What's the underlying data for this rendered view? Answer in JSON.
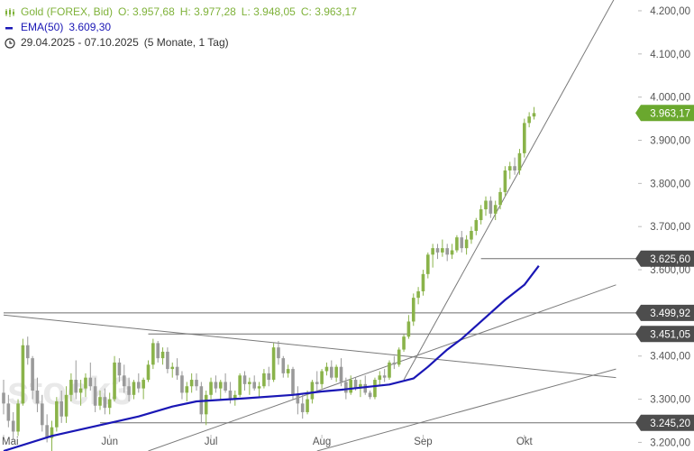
{
  "legend": {
    "instrument": "Gold (FOREX, Bid)",
    "open": "O: 3.957,68",
    "high": "H: 3.977,28",
    "low": "L: 3.948,05",
    "close": "C: 3.963,17",
    "ema_label": "EMA(50)",
    "ema_value": "3.609,30",
    "range": "29.04.2025 - 07.10.2025",
    "period": "(5 Monate, 1 Tag)"
  },
  "watermark": "stock3",
  "colors": {
    "up": "#8ab34a",
    "down": "#9a9a9a",
    "ema": "#1a17b5",
    "trendline": "#7a7a7a",
    "price_tag": "#6aa82e",
    "level_tag": "#4d4d4d"
  },
  "chart_data": {
    "type": "candlestick",
    "title": "",
    "xlabel": "",
    "ylabel": "",
    "ylim": [
      3180,
      4225
    ],
    "y_ticks": [
      {
        "v": 4200,
        "label": "4.200,00"
      },
      {
        "v": 4100,
        "label": "4.100,00"
      },
      {
        "v": 4000,
        "label": "4.000,00"
      },
      {
        "v": 3900,
        "label": "3.900,00"
      },
      {
        "v": 3800,
        "label": "3.800,00"
      },
      {
        "v": 3700,
        "label": "3.700,00"
      },
      {
        "v": 3600,
        "label": "3.600,00"
      },
      {
        "v": 3400,
        "label": "3.400,00"
      },
      {
        "v": 3300,
        "label": "3.300,00"
      },
      {
        "v": 3200,
        "label": "3.200,00"
      }
    ],
    "x_ticks": [
      {
        "i": 0,
        "label": "Mai"
      },
      {
        "i": 22,
        "label": "Jun"
      },
      {
        "i": 43,
        "label": "Jul"
      },
      {
        "i": 66,
        "label": "Aug"
      },
      {
        "i": 87,
        "label": "Sep"
      },
      {
        "i": 108,
        "label": "Okt"
      }
    ],
    "candles_ohlc": [
      [
        3315,
        3345,
        3265,
        3290
      ],
      [
        3290,
        3310,
        3235,
        3250
      ],
      [
        3250,
        3270,
        3205,
        3225
      ],
      [
        3225,
        3300,
        3215,
        3290
      ],
      [
        3290,
        3440,
        3285,
        3425
      ],
      [
        3425,
        3445,
        3380,
        3395
      ],
      [
        3395,
        3400,
        3300,
        3320
      ],
      [
        3320,
        3350,
        3270,
        3290
      ],
      [
        3290,
        3310,
        3225,
        3240
      ],
      [
        3240,
        3265,
        3200,
        3210
      ],
      [
        3210,
        3250,
        3180,
        3235
      ],
      [
        3235,
        3305,
        3225,
        3295
      ],
      [
        3295,
        3320,
        3245,
        3260
      ],
      [
        3260,
        3330,
        3245,
        3310
      ],
      [
        3310,
        3360,
        3295,
        3345
      ],
      [
        3345,
        3390,
        3300,
        3315
      ],
      [
        3315,
        3345,
        3285,
        3325
      ],
      [
        3325,
        3360,
        3305,
        3350
      ],
      [
        3350,
        3385,
        3320,
        3330
      ],
      [
        3330,
        3350,
        3270,
        3285
      ],
      [
        3285,
        3320,
        3275,
        3305
      ],
      [
        3305,
        3325,
        3265,
        3280
      ],
      [
        3280,
        3315,
        3265,
        3300
      ],
      [
        3300,
        3400,
        3295,
        3385
      ],
      [
        3385,
        3395,
        3340,
        3355
      ],
      [
        3355,
        3380,
        3315,
        3330
      ],
      [
        3330,
        3350,
        3295,
        3310
      ],
      [
        3310,
        3345,
        3300,
        3340
      ],
      [
        3340,
        3360,
        3315,
        3325
      ],
      [
        3325,
        3350,
        3300,
        3345
      ],
      [
        3345,
        3390,
        3340,
        3380
      ],
      [
        3380,
        3440,
        3370,
        3430
      ],
      [
        3430,
        3435,
        3385,
        3395
      ],
      [
        3395,
        3420,
        3380,
        3410
      ],
      [
        3410,
        3420,
        3360,
        3370
      ],
      [
        3370,
        3385,
        3350,
        3375
      ],
      [
        3375,
        3395,
        3345,
        3355
      ],
      [
        3355,
        3365,
        3300,
        3315
      ],
      [
        3315,
        3340,
        3295,
        3330
      ],
      [
        3330,
        3360,
        3315,
        3345
      ],
      [
        3345,
        3360,
        3320,
        3330
      ],
      [
        3330,
        3340,
        3245,
        3265
      ],
      [
        3265,
        3320,
        3240,
        3310
      ],
      [
        3310,
        3350,
        3300,
        3340
      ],
      [
        3340,
        3355,
        3315,
        3325
      ],
      [
        3325,
        3345,
        3300,
        3340
      ],
      [
        3340,
        3360,
        3315,
        3320
      ],
      [
        3320,
        3340,
        3290,
        3300
      ],
      [
        3300,
        3320,
        3285,
        3310
      ],
      [
        3310,
        3360,
        3305,
        3355
      ],
      [
        3355,
        3365,
        3320,
        3335
      ],
      [
        3335,
        3350,
        3310,
        3340
      ],
      [
        3340,
        3355,
        3320,
        3325
      ],
      [
        3325,
        3340,
        3305,
        3330
      ],
      [
        3330,
        3370,
        3325,
        3360
      ],
      [
        3360,
        3375,
        3330,
        3345
      ],
      [
        3345,
        3430,
        3340,
        3420
      ],
      [
        3420,
        3435,
        3380,
        3395
      ],
      [
        3395,
        3400,
        3350,
        3360
      ],
      [
        3360,
        3380,
        3350,
        3370
      ],
      [
        3370,
        3375,
        3300,
        3310
      ],
      [
        3310,
        3330,
        3265,
        3290
      ],
      [
        3290,
        3310,
        3255,
        3270
      ],
      [
        3270,
        3320,
        3265,
        3300
      ],
      [
        3300,
        3345,
        3290,
        3340
      ],
      [
        3340,
        3365,
        3320,
        3335
      ],
      [
        3335,
        3370,
        3325,
        3365
      ],
      [
        3365,
        3385,
        3355,
        3375
      ],
      [
        3375,
        3390,
        3345,
        3350
      ],
      [
        3350,
        3380,
        3340,
        3375
      ],
      [
        3375,
        3395,
        3330,
        3340
      ],
      [
        3340,
        3350,
        3300,
        3315
      ],
      [
        3315,
        3355,
        3310,
        3345
      ],
      [
        3345,
        3350,
        3320,
        3325
      ],
      [
        3325,
        3345,
        3305,
        3335
      ],
      [
        3335,
        3355,
        3310,
        3315
      ],
      [
        3315,
        3320,
        3300,
        3305
      ],
      [
        3305,
        3350,
        3300,
        3345
      ],
      [
        3345,
        3365,
        3330,
        3355
      ],
      [
        3355,
        3370,
        3340,
        3350
      ],
      [
        3350,
        3390,
        3345,
        3385
      ],
      [
        3385,
        3400,
        3370,
        3380
      ],
      [
        3380,
        3420,
        3375,
        3415
      ],
      [
        3415,
        3450,
        3410,
        3445
      ],
      [
        3445,
        3495,
        3440,
        3480
      ],
      [
        3480,
        3545,
        3470,
        3535
      ],
      [
        3535,
        3560,
        3520,
        3550
      ],
      [
        3550,
        3600,
        3540,
        3590
      ],
      [
        3590,
        3640,
        3580,
        3635
      ],
      [
        3635,
        3660,
        3605,
        3650
      ],
      [
        3650,
        3660,
        3625,
        3640
      ],
      [
        3640,
        3670,
        3630,
        3650
      ],
      [
        3650,
        3660,
        3620,
        3635
      ],
      [
        3635,
        3660,
        3625,
        3645
      ],
      [
        3645,
        3680,
        3640,
        3675
      ],
      [
        3675,
        3690,
        3640,
        3650
      ],
      [
        3650,
        3680,
        3635,
        3670
      ],
      [
        3670,
        3700,
        3660,
        3690
      ],
      [
        3690,
        3720,
        3680,
        3715
      ],
      [
        3715,
        3750,
        3705,
        3740
      ],
      [
        3740,
        3770,
        3725,
        3760
      ],
      [
        3760,
        3770,
        3720,
        3730
      ],
      [
        3730,
        3760,
        3715,
        3750
      ],
      [
        3750,
        3790,
        3740,
        3780
      ],
      [
        3780,
        3840,
        3770,
        3830
      ],
      [
        3830,
        3850,
        3810,
        3840
      ],
      [
        3840,
        3860,
        3820,
        3830
      ],
      [
        3830,
        3880,
        3820,
        3870
      ],
      [
        3870,
        3950,
        3860,
        3940
      ],
      [
        3940,
        3965,
        3930,
        3955
      ],
      [
        3955,
        3977,
        3948,
        3963
      ]
    ],
    "ema50": [
      [
        0,
        3180
      ],
      [
        10,
        3215
      ],
      [
        20,
        3240
      ],
      [
        28,
        3260
      ],
      [
        35,
        3283
      ],
      [
        40,
        3295
      ],
      [
        50,
        3302
      ],
      [
        60,
        3310
      ],
      [
        66,
        3318
      ],
      [
        70,
        3322
      ],
      [
        75,
        3328
      ],
      [
        80,
        3334
      ],
      [
        85,
        3348
      ],
      [
        88,
        3375
      ],
      [
        92,
        3415
      ],
      [
        95,
        3440
      ],
      [
        100,
        3490
      ],
      [
        104,
        3530
      ],
      [
        108,
        3565
      ],
      [
        111,
        3609
      ]
    ],
    "horizontal_levels": [
      {
        "value": 3625.6,
        "label": "3.625,60",
        "from_i": 99
      },
      {
        "value": 3499.92,
        "label": "3.499,92",
        "from_i": 0
      },
      {
        "value": 3451.05,
        "label": "3.451,05",
        "from_i": 30
      },
      {
        "value": 3245.2,
        "label": "3.245,20",
        "from_i": 20
      }
    ],
    "trendlines": [
      {
        "p1": [
          0,
          3495
        ],
        "p2": [
          127,
          3350
        ]
      },
      {
        "p1": [
          30,
          3180
        ],
        "p2": [
          127,
          3565
        ]
      },
      {
        "p1": [
          65,
          3180
        ],
        "p2": [
          127,
          3370
        ]
      },
      {
        "p1": [
          83,
          3345
        ],
        "p2": [
          127,
          4235
        ]
      }
    ],
    "last_price": {
      "value": 3963.17,
      "label": "3.963,17"
    }
  }
}
